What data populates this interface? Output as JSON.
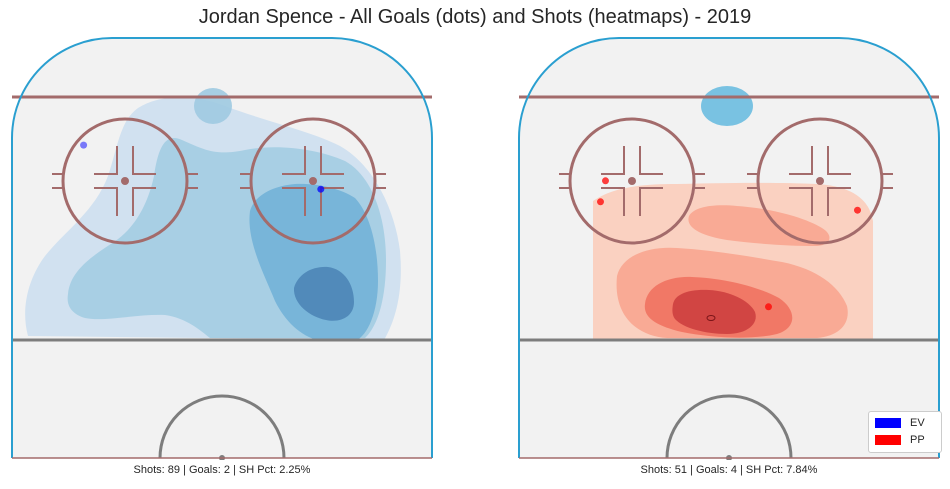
{
  "title": "Jordan Spence - All Goals (dots) and Shots (heatmaps) - 2019",
  "colors": {
    "ev": "#0000ff",
    "pp": "#ff0000",
    "ice": "#f2f2f2",
    "boards": "#2a9fd0",
    "red_line": "#a36b6b",
    "blue_line": "#7d7d7d"
  },
  "legend": {
    "placement": "lower-right",
    "items": [
      {
        "label": "EV",
        "color": "#0000ff"
      },
      {
        "label": "PP",
        "color": "#ff0000"
      }
    ]
  },
  "chart_data": [
    {
      "type": "heatmap",
      "strength": "EV",
      "caption": "Shots: 89 | Goals: 2 | SH Pct: 2.25%",
      "shots": 89,
      "goals": 2,
      "sh_pct": 2.25,
      "colormap": "Blues",
      "goal_points": [
        {
          "x": -28,
          "y": 74.5
        },
        {
          "x": 20,
          "y": 64
        }
      ]
    },
    {
      "type": "heatmap",
      "strength": "PP",
      "caption": "Shots: 51 | Goals: 4 | SH Pct: 7.84%",
      "shots": 51,
      "goals": 4,
      "sh_pct": 7.84,
      "colormap": "Reds",
      "goal_points": [
        {
          "x": -25,
          "y": 66
        },
        {
          "x": -26,
          "y": 61
        },
        {
          "x": 26,
          "y": 59
        },
        {
          "x": 8,
          "y": 36
        }
      ]
    }
  ]
}
